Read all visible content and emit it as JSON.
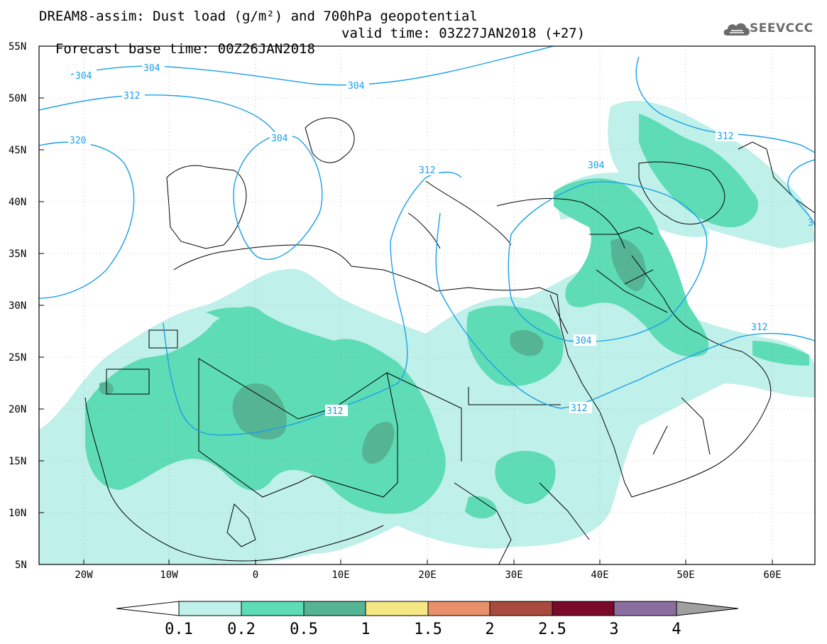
{
  "title": {
    "line1": "DREAM8-assim: Dust load (g/m²) and 700hPa geopotential",
    "base_time": "Forecast base time: 00Z26JAN2018",
    "valid_time": "valid time: 03Z27JAN2018 (+27)"
  },
  "logo": {
    "text": "SEEVCCC",
    "icon": "cloud-icon"
  },
  "map": {
    "projection": "lat-lon",
    "lat_range": [
      "5N",
      "55N"
    ],
    "lon_range": [
      "25W",
      "65E"
    ],
    "lat_labels": [
      "55N",
      "50N",
      "45N",
      "40N",
      "35N",
      "30N",
      "25N",
      "20N",
      "15N",
      "10N",
      "5N"
    ],
    "lon_labels": [
      "20W",
      "10W",
      "0",
      "10E",
      "20E",
      "30E",
      "40E",
      "50E",
      "60E"
    ],
    "contour_labels": [
      "304",
      "304",
      "312",
      "320",
      "304",
      "312",
      "304",
      "312",
      "312",
      "304",
      "312",
      "312",
      "3"
    ],
    "colors": {
      "contour": "#1aa0e8",
      "dust_0_1": "#bff0ea",
      "dust_0_2": "#5edcb5",
      "dust_0_5": "#55b494"
    }
  },
  "colorbar": {
    "labels": [
      "0.1",
      "0.2",
      "0.5",
      "1",
      "1.5",
      "2",
      "2.5",
      "3",
      "4"
    ],
    "colors": [
      "#ffffff",
      "#bff0ea",
      "#5edcb5",
      "#55b494",
      "#f5e884",
      "#e8906a",
      "#a84a3e",
      "#7a0a2a",
      "#8a6ea0",
      "#a0a0a0"
    ]
  }
}
